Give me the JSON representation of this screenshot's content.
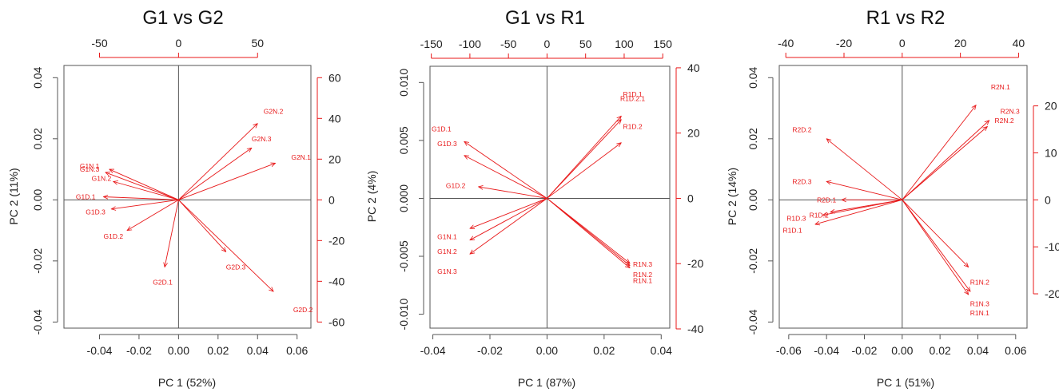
{
  "figure": {
    "title_color": "#111111",
    "accent_color": "#e8191a",
    "axis_color": "#555555"
  },
  "chart_data": [
    {
      "type": "scatter",
      "subtype": "biplot",
      "title": "G1 vs G2",
      "xlabel": "PC 1 (52%)",
      "ylabel": "PC 2 (11%)",
      "xlim": [
        -0.058,
        0.067
      ],
      "ylim": [
        -0.042,
        0.044
      ],
      "xticks": [
        -0.04,
        -0.02,
        0.0,
        0.02,
        0.04,
        0.06
      ],
      "xtick_labels": [
        "-0.04",
        "-0.02",
        "0.00",
        "0.02",
        "0.04",
        "0.06"
      ],
      "yticks": [
        -0.04,
        -0.02,
        0.0,
        0.02,
        0.04
      ],
      "ytick_labels": [
        "-0.04",
        "-0.02",
        "0.00",
        "0.02",
        "0.04"
      ],
      "top_ticks": [
        -50,
        0,
        50
      ],
      "top_tick_labels": [
        "-50",
        "0",
        "50"
      ],
      "top_scale_per_unit": 1250,
      "right_ticks": [
        60,
        40,
        20,
        0,
        -20,
        -40,
        -60
      ],
      "right_tick_labels": [
        "60",
        "40",
        "20",
        "0",
        "-20",
        "-40",
        "-60"
      ],
      "right_scale_per_unit": 1500,
      "reference_lines": {
        "x": 0,
        "y": 0
      },
      "points": [
        {
          "label": "G2N.2",
          "x": 0.048,
          "y": 0.029
        },
        {
          "label": "G2N.3",
          "x": 0.042,
          "y": 0.02
        },
        {
          "label": "G2N.1",
          "x": 0.062,
          "y": 0.014
        },
        {
          "label": "G1N.1",
          "x": -0.045,
          "y": 0.011
        },
        {
          "label": "G1N.3",
          "x": -0.045,
          "y": 0.01
        },
        {
          "label": "G1N.2",
          "x": -0.039,
          "y": 0.007
        },
        {
          "label": "G1D.1",
          "x": -0.047,
          "y": 0.001
        },
        {
          "label": "G1D.3",
          "x": -0.042,
          "y": -0.004
        },
        {
          "label": "G1D.2",
          "x": -0.033,
          "y": -0.012
        },
        {
          "label": "G2D.1",
          "x": -0.008,
          "y": -0.027
        },
        {
          "label": "G2D.3",
          "x": 0.029,
          "y": -0.022
        },
        {
          "label": "G2D.2",
          "x": 0.063,
          "y": -0.036
        }
      ],
      "arrows": [
        {
          "x": 0.04,
          "y": 0.025
        },
        {
          "x": 0.037,
          "y": 0.017
        },
        {
          "x": 0.049,
          "y": 0.012
        },
        {
          "x": -0.035,
          "y": 0.01
        },
        {
          "x": -0.037,
          "y": 0.009
        },
        {
          "x": -0.033,
          "y": 0.006
        },
        {
          "x": -0.038,
          "y": 0.001
        },
        {
          "x": -0.034,
          "y": -0.003
        },
        {
          "x": -0.026,
          "y": -0.01
        },
        {
          "x": -0.007,
          "y": -0.022
        },
        {
          "x": 0.024,
          "y": -0.017
        },
        {
          "x": 0.048,
          "y": -0.03
        }
      ]
    },
    {
      "type": "scatter",
      "subtype": "biplot",
      "title": "G1 vs R1",
      "xlabel": "PC 1 (87%)",
      "ylabel": "PC 2 (4%)",
      "xlim": [
        -0.041,
        0.043
      ],
      "ylim": [
        -0.0112,
        0.0114
      ],
      "xticks": [
        -0.04,
        -0.02,
        0.0,
        0.02,
        0.04
      ],
      "xtick_labels": [
        "-0.04",
        "-0.02",
        "0.00",
        "0.02",
        "0.04"
      ],
      "yticks": [
        -0.01,
        -0.005,
        0.0,
        0.005,
        0.01
      ],
      "ytick_labels": [
        "-0.010",
        "-0.005",
        "0.000",
        "0.005",
        "0.010"
      ],
      "top_ticks": [
        -150,
        -100,
        -50,
        0,
        50,
        100,
        150
      ],
      "top_tick_labels": [
        "-150",
        "-100",
        "-50",
        "0",
        "50",
        "100",
        "150"
      ],
      "top_scale_per_unit": 3700,
      "right_ticks": [
        40,
        20,
        0,
        -20,
        -40
      ],
      "right_tick_labels": [
        "40",
        "20",
        "0",
        "-20",
        "-40"
      ],
      "right_scale_per_unit": 3550,
      "reference_lines": {
        "x": 0,
        "y": 0
      },
      "points": [
        {
          "label": "R1D.1",
          "x": 0.03,
          "y": 0.009
        },
        {
          "label": "R1D.2.1",
          "x": 0.03,
          "y": 0.0086
        },
        {
          "label": "R1D.2",
          "x": 0.03,
          "y": 0.0062
        },
        {
          "label": "G1D.1",
          "x": -0.037,
          "y": 0.006
        },
        {
          "label": "G1D.3",
          "x": -0.035,
          "y": 0.0047
        },
        {
          "label": "G1D.2",
          "x": -0.032,
          "y": 0.0011
        },
        {
          "label": "G1N.1",
          "x": -0.035,
          "y": -0.0033
        },
        {
          "label": "G1N.2",
          "x": -0.035,
          "y": -0.0046
        },
        {
          "label": "G1N.3",
          "x": -0.035,
          "y": -0.0063
        },
        {
          "label": "R1N.3",
          "x": 0.0335,
          "y": -0.0057
        },
        {
          "label": "R1N.2",
          "x": 0.0335,
          "y": -0.0066
        },
        {
          "label": "R1N.1",
          "x": 0.0335,
          "y": -0.0071
        }
      ],
      "arrows": [
        {
          "x": 0.026,
          "y": 0.0071
        },
        {
          "x": 0.026,
          "y": 0.0068
        },
        {
          "x": 0.026,
          "y": 0.0048
        },
        {
          "x": -0.029,
          "y": 0.0049
        },
        {
          "x": -0.029,
          "y": 0.0037
        },
        {
          "x": -0.024,
          "y": 0.001
        },
        {
          "x": -0.027,
          "y": -0.0026
        },
        {
          "x": -0.027,
          "y": -0.0036
        },
        {
          "x": -0.027,
          "y": -0.0048
        },
        {
          "x": 0.029,
          "y": -0.0056
        },
        {
          "x": 0.029,
          "y": -0.0058
        },
        {
          "x": 0.029,
          "y": -0.006
        }
      ]
    },
    {
      "type": "scatter",
      "subtype": "biplot",
      "title": "R1 vs R2",
      "xlabel": "PC 1 (51%)",
      "ylabel": "PC 2 (14%)",
      "xlim": [
        -0.065,
        0.066
      ],
      "ylim": [
        -0.042,
        0.044
      ],
      "xticks": [
        -0.06,
        -0.04,
        -0.02,
        0.0,
        0.02,
        0.04,
        0.06
      ],
      "xtick_labels": [
        "-0.06",
        "-0.04",
        "-0.02",
        "0.00",
        "0.02",
        "0.04",
        "0.06"
      ],
      "yticks": [
        -0.04,
        -0.02,
        0.0,
        0.02,
        0.04
      ],
      "ytick_labels": [
        "-0.04",
        "-0.02",
        "0.00",
        "0.02",
        "0.04"
      ],
      "top_ticks": [
        -40,
        -20,
        0,
        20,
        40
      ],
      "top_tick_labels": [
        "-40",
        "-20",
        "0",
        "20",
        "40"
      ],
      "top_scale_per_unit": 650,
      "right_ticks": [
        20,
        10,
        0,
        -10,
        -20
      ],
      "right_tick_labels": [
        "20",
        "10",
        "0",
        "-10",
        "-20"
      ],
      "right_scale_per_unit": 650,
      "reference_lines": {
        "x": 0,
        "y": 0
      },
      "points": [
        {
          "label": "R2N.1",
          "x": 0.052,
          "y": 0.037
        },
        {
          "label": "R2N.3",
          "x": 0.057,
          "y": 0.029
        },
        {
          "label": "R2N.2",
          "x": 0.054,
          "y": 0.026
        },
        {
          "label": "R2D.2",
          "x": -0.053,
          "y": 0.023
        },
        {
          "label": "R2D.3",
          "x": -0.053,
          "y": 0.006
        },
        {
          "label": "R2D.1",
          "x": -0.04,
          "y": 0.0
        },
        {
          "label": "R1D.3",
          "x": -0.056,
          "y": -0.006
        },
        {
          "label": "R1D.2",
          "x": -0.044,
          "y": -0.005
        },
        {
          "label": "R1D.1",
          "x": -0.058,
          "y": -0.01
        },
        {
          "label": "R1N.2",
          "x": 0.041,
          "y": -0.027
        },
        {
          "label": "R1N.3",
          "x": 0.041,
          "y": -0.034
        },
        {
          "label": "R1N.1",
          "x": 0.041,
          "y": -0.037
        }
      ],
      "arrows": [
        {
          "x": 0.039,
          "y": 0.031
        },
        {
          "x": 0.046,
          "y": 0.026
        },
        {
          "x": 0.045,
          "y": 0.024
        },
        {
          "x": -0.04,
          "y": 0.02
        },
        {
          "x": -0.04,
          "y": 0.006
        },
        {
          "x": -0.032,
          "y": 0.0
        },
        {
          "x": -0.042,
          "y": -0.005
        },
        {
          "x": -0.038,
          "y": -0.004
        },
        {
          "x": -0.046,
          "y": -0.008
        },
        {
          "x": 0.035,
          "y": -0.022
        },
        {
          "x": 0.036,
          "y": -0.03
        },
        {
          "x": 0.035,
          "y": -0.031
        }
      ]
    }
  ]
}
